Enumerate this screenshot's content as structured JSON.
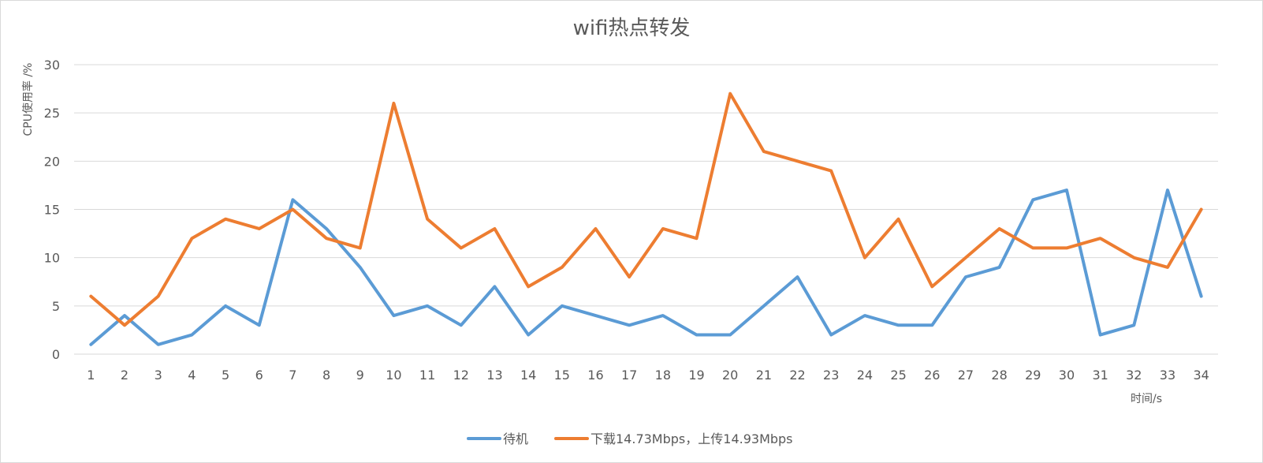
{
  "chart_data": {
    "type": "line",
    "title": "wifi热点转发",
    "xlabel": "时间/s",
    "ylabel": "CPU使用率 /%",
    "categories": [
      "1",
      "2",
      "3",
      "4",
      "5",
      "6",
      "7",
      "8",
      "9",
      "10",
      "11",
      "12",
      "13",
      "14",
      "15",
      "16",
      "17",
      "18",
      "19",
      "20",
      "21",
      "22",
      "23",
      "24",
      "25",
      "26",
      "27",
      "28",
      "29",
      "30",
      "31",
      "32",
      "33",
      "34"
    ],
    "ylim": [
      0,
      30
    ],
    "yticks": [
      0,
      5,
      10,
      15,
      20,
      25,
      30
    ],
    "grid": true,
    "legend_position": "bottom",
    "series": [
      {
        "name": "待机",
        "color": "#5b9bd5",
        "values": [
          1,
          4,
          1,
          2,
          5,
          3,
          16,
          13,
          9,
          4,
          5,
          3,
          7,
          2,
          5,
          4,
          3,
          4,
          2,
          2,
          5,
          8,
          2,
          4,
          3,
          3,
          8,
          9,
          16,
          17,
          2,
          3,
          17,
          6
        ]
      },
      {
        "name": "下载14.73Mbps，上传14.93Mbps",
        "color": "#ed7d31",
        "values": [
          6,
          3,
          6,
          12,
          14,
          13,
          15,
          12,
          11,
          26,
          14,
          11,
          13,
          7,
          9,
          13,
          8,
          13,
          12,
          27,
          21,
          20,
          19,
          10,
          14,
          7,
          10,
          13,
          11,
          11,
          12,
          10,
          9,
          15
        ]
      }
    ]
  }
}
